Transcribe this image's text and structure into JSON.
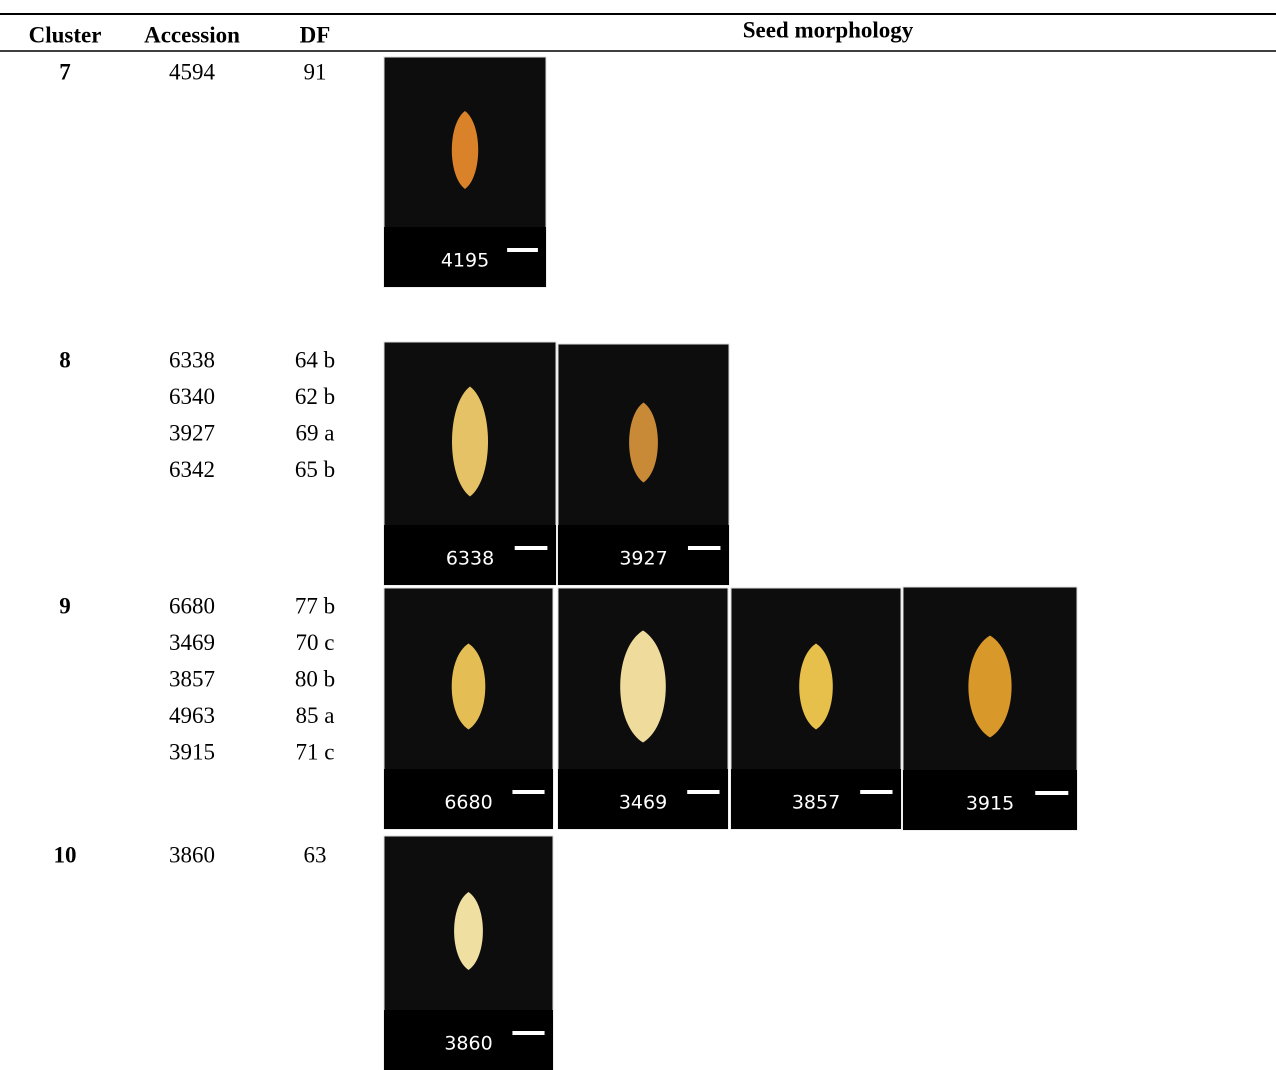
{
  "header": {
    "cluster": "Cluster",
    "accession": "Accession",
    "df": "DF",
    "seed_morphology": "Seed morphology"
  },
  "rows": [
    {
      "cluster": "7",
      "accessions": [
        "4594"
      ],
      "df": [
        "91"
      ],
      "images": [
        "4195"
      ]
    },
    {
      "cluster": "8",
      "accessions": [
        "6338",
        "6340",
        "3927",
        "6342"
      ],
      "df": [
        "64 b",
        "62 b",
        "69 a",
        "65 b"
      ],
      "images": [
        "6338",
        "3927"
      ]
    },
    {
      "cluster": "9",
      "accessions": [
        "6680",
        "3469",
        "3857",
        "4963",
        "3915"
      ],
      "df": [
        "77 b",
        "70 c",
        "80 b",
        "85 a",
        "71 c"
      ],
      "images": [
        "6680",
        "3469",
        "3857",
        "3915"
      ]
    },
    {
      "cluster": "10",
      "accessions": [
        "3860"
      ],
      "df": [
        "63"
      ],
      "images": [
        "3860"
      ]
    }
  ]
}
